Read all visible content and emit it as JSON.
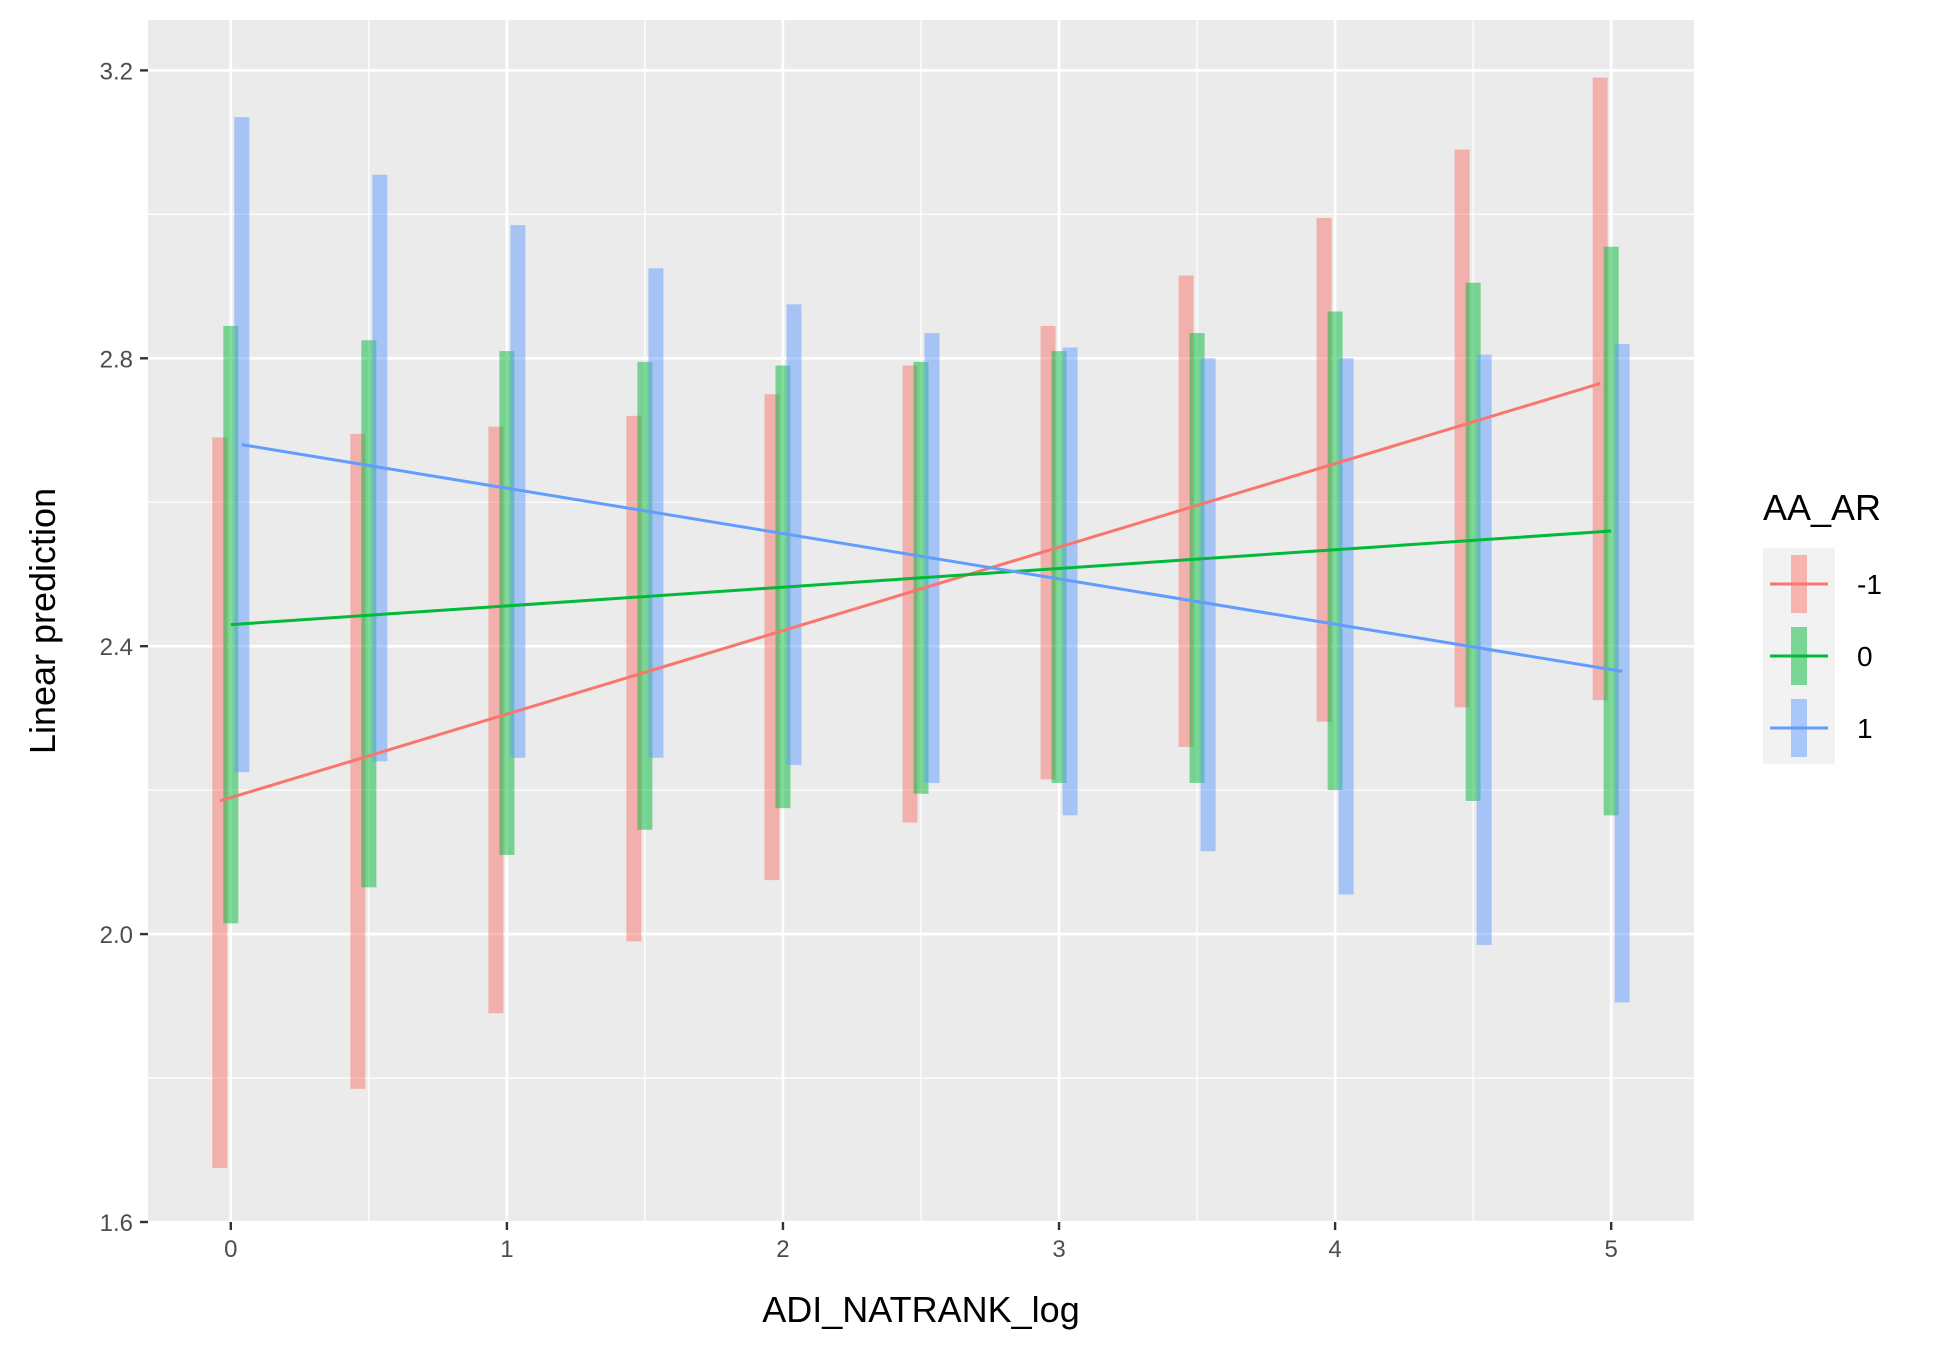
{
  "chart_data": {
    "type": "line",
    "xlabel": "ADI_NATRANK_log",
    "ylabel": "Linear prediction",
    "xlim": [
      -0.3,
      5.3
    ],
    "ylim": [
      1.6,
      3.27
    ],
    "x_ticks": [
      0,
      1,
      2,
      3,
      4,
      5
    ],
    "x_tick_labels": [
      "0",
      "1",
      "2",
      "3",
      "4",
      "5"
    ],
    "y_ticks": [
      1.6,
      2.0,
      2.4,
      2.8,
      3.2
    ],
    "y_tick_labels": [
      "1.6",
      "2.0",
      "2.4",
      "2.8",
      "3.2"
    ],
    "grid": true,
    "legend": {
      "title": "AA_AR",
      "position": "right"
    },
    "x": [
      0,
      0.5,
      1,
      1.5,
      2,
      2.5,
      3,
      3.5,
      4,
      4.5,
      5
    ],
    "series": [
      {
        "name": "-1",
        "color": "#F8766D",
        "line": [
          [
            0,
            2.185
          ],
          [
            5,
            2.765
          ]
        ],
        "ci_low": [
          1.675,
          1.785,
          1.89,
          1.99,
          2.075,
          2.155,
          2.215,
          2.26,
          2.295,
          2.315,
          2.325
        ],
        "ci_high": [
          2.69,
          2.695,
          2.705,
          2.72,
          2.75,
          2.79,
          2.845,
          2.915,
          2.995,
          3.09,
          3.19
        ]
      },
      {
        "name": "0",
        "color": "#00BA38",
        "line": [
          [
            0,
            2.43
          ],
          [
            5,
            2.56
          ]
        ],
        "ci_low": [
          2.015,
          2.065,
          2.11,
          2.145,
          2.175,
          2.195,
          2.21,
          2.21,
          2.2,
          2.185,
          2.165
        ],
        "ci_high": [
          2.845,
          2.825,
          2.81,
          2.795,
          2.79,
          2.795,
          2.81,
          2.835,
          2.865,
          2.905,
          2.955
        ]
      },
      {
        "name": "1",
        "color": "#619CFF",
        "line": [
          [
            0,
            2.68
          ],
          [
            5,
            2.365
          ]
        ],
        "ci_low": [
          2.225,
          2.24,
          2.245,
          2.245,
          2.235,
          2.21,
          2.165,
          2.115,
          2.055,
          1.985,
          1.905
        ],
        "ci_high": [
          3.135,
          3.055,
          2.985,
          2.925,
          2.875,
          2.835,
          2.815,
          2.8,
          2.8,
          2.805,
          2.82
        ]
      }
    ]
  }
}
